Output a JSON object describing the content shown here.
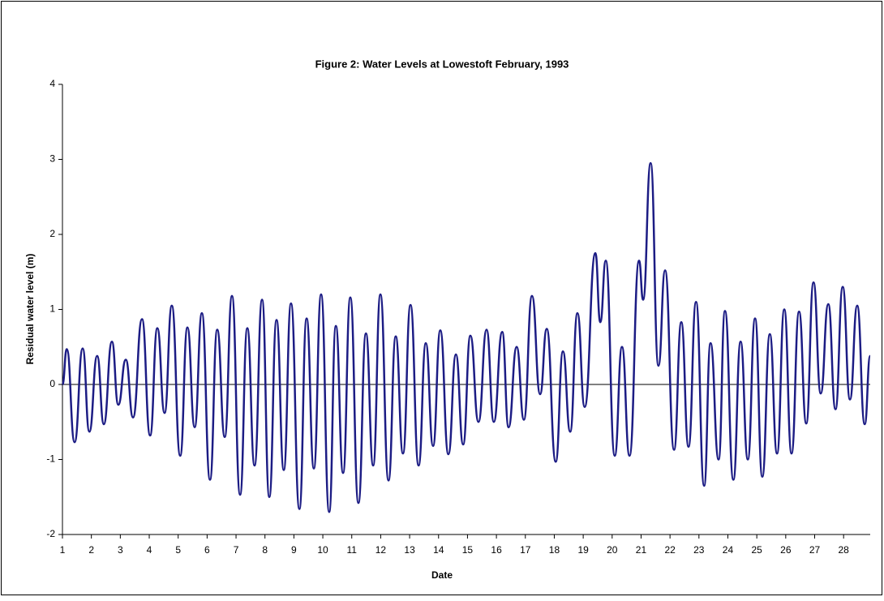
{
  "chart_data": {
    "type": "line",
    "title": "Figure 2: Water Levels at Lowestoft February, 1993",
    "xlabel": "Date",
    "ylabel": "Residual water level (m)",
    "xlim": [
      1,
      28.92
    ],
    "xticks": [
      1,
      2,
      3,
      4,
      5,
      6,
      7,
      8,
      9,
      10,
      11,
      12,
      13,
      14,
      15,
      16,
      17,
      18,
      19,
      20,
      21,
      22,
      23,
      24,
      25,
      26,
      27,
      28
    ],
    "ylim": [
      -2,
      4
    ],
    "yticks": [
      -2,
      -1,
      0,
      1,
      2,
      3,
      4
    ],
    "series": [
      {
        "color": "#1c1c84",
        "x": [
          1,
          1.15,
          1.42,
          1.7,
          1.93,
          2.2,
          2.43,
          2.71,
          2.93,
          3.19,
          3.44,
          3.75,
          4.03,
          4.28,
          4.53,
          4.78,
          5.07,
          5.32,
          5.57,
          5.82,
          6.1,
          6.35,
          6.61,
          6.86,
          7.14,
          7.39,
          7.64,
          7.9,
          8.15,
          8.4,
          8.65,
          8.9,
          9.19,
          9.44,
          9.69,
          9.94,
          10.22,
          10.45,
          10.7,
          10.95,
          11.23,
          11.49,
          11.74,
          11.99,
          12.27,
          12.52,
          12.77,
          13.03,
          13.31,
          13.56,
          13.81,
          14.06,
          14.34,
          14.6,
          14.85,
          15.1,
          15.38,
          15.66,
          15.91,
          16.2,
          16.42,
          16.7,
          16.95,
          17.23,
          17.51,
          17.74,
          18.05,
          18.3,
          18.55,
          18.8,
          19.05,
          19.42,
          19.59,
          19.78,
          20.09,
          20.34,
          20.6,
          20.93,
          21.07,
          21.33,
          21.6,
          21.83,
          22.14,
          22.39,
          22.64,
          22.9,
          23.18,
          23.4,
          23.68,
          23.9,
          24.19,
          24.44,
          24.69,
          24.94,
          25.19,
          25.45,
          25.7,
          25.95,
          26.2,
          26.46,
          26.71,
          26.96,
          27.21,
          27.47,
          27.72,
          27.97,
          28.22,
          28.47,
          28.73,
          28.92
        ],
        "values": [
          0,
          0.47,
          -0.77,
          0.48,
          -0.63,
          0.38,
          -0.53,
          0.57,
          -0.27,
          0.33,
          -0.44,
          0.87,
          -0.68,
          0.75,
          -0.38,
          1.05,
          -0.95,
          0.76,
          -0.57,
          0.95,
          -1.27,
          0.73,
          -0.7,
          1.18,
          -1.47,
          0.75,
          -1.08,
          1.13,
          -1.5,
          0.86,
          -1.14,
          1.08,
          -1.66,
          0.88,
          -1.12,
          1.2,
          -1.7,
          0.78,
          -1.18,
          1.16,
          -1.58,
          0.68,
          -1.08,
          1.2,
          -1.28,
          0.64,
          -0.92,
          1.06,
          -1.08,
          0.55,
          -0.82,
          0.72,
          -0.93,
          0.4,
          -0.8,
          0.65,
          -0.5,
          0.73,
          -0.5,
          0.7,
          -0.57,
          0.5,
          -0.47,
          1.18,
          -0.13,
          0.74,
          -1.03,
          0.44,
          -0.63,
          0.95,
          -0.3,
          1.75,
          0.83,
          1.65,
          -0.95,
          0.5,
          -0.95,
          1.65,
          1.13,
          2.95,
          0.25,
          1.52,
          -0.87,
          0.83,
          -0.83,
          1.1,
          -1.35,
          0.55,
          -1,
          0.98,
          -1.27,
          0.57,
          -1,
          0.88,
          -1.23,
          0.67,
          -0.92,
          1,
          -0.92,
          0.97,
          -0.52,
          1.36,
          -0.12,
          1.07,
          -0.33,
          1.3,
          -0.2,
          1.05,
          -0.53,
          0.38
        ]
      }
    ]
  }
}
